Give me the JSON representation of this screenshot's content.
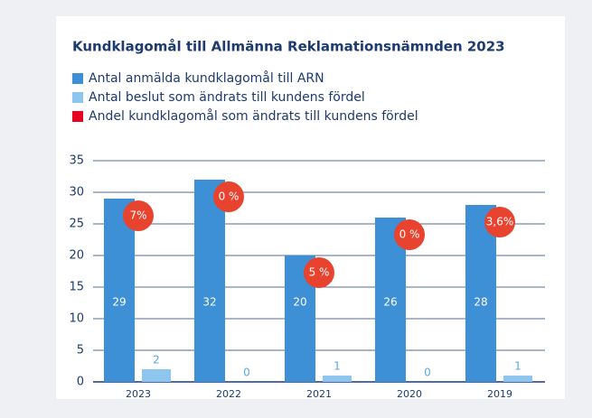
{
  "chart_data": {
    "type": "bar",
    "title": "Kundklagomål till Allmänna Reklamationsnämnden 2023",
    "categories": [
      "2023",
      "2022",
      "2021",
      "2020",
      "2019"
    ],
    "series": [
      {
        "name": "Antal anmälda kundklagomål till ARN",
        "color": "#3d8fd6",
        "values": [
          29,
          32,
          20,
          26,
          28
        ]
      },
      {
        "name": "Antal beslut som ändrats till kundens fördel",
        "color": "#8dc5ee",
        "values": [
          2,
          0,
          1,
          0,
          1
        ]
      },
      {
        "name": "Andel kundklagomål som ändrats till kundens fördel",
        "color": "#e8432f",
        "values": [
          7,
          0,
          5,
          0,
          3.6
        ],
        "value_labels": [
          "7%",
          "0 %",
          "5 %",
          "0 %",
          "3,6%"
        ]
      }
    ],
    "ylim": [
      0,
      35
    ],
    "yticks": [
      0,
      5,
      10,
      15,
      20,
      25,
      30,
      35
    ],
    "grid": true
  }
}
